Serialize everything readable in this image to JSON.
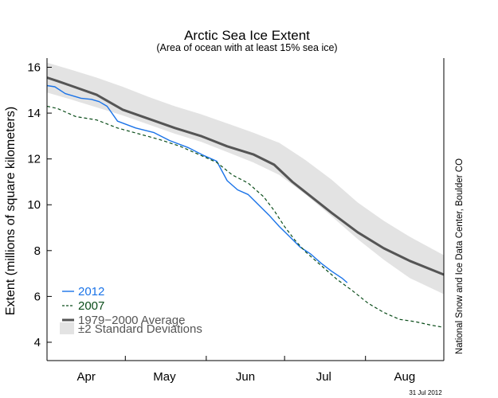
{
  "chart_data": {
    "type": "line",
    "title": "Arctic Sea Ice Extent",
    "subtitle": "(Area of ocean with at least 15% sea ice)",
    "ylabel": "Extent (millions of square kilometers)",
    "xlabel": "",
    "ylim": [
      3.2,
      16.4
    ],
    "yticks": [
      4,
      6,
      8,
      10,
      12,
      14,
      16
    ],
    "xlim": [
      1,
      153
    ],
    "xticks": [
      {
        "label": "Apr",
        "day": 16
      },
      {
        "label": "May",
        "day": 46
      },
      {
        "label": "Jun",
        "day": 77
      },
      {
        "label": "Jul",
        "day": 107
      },
      {
        "label": "Aug",
        "day": 138
      }
    ],
    "grid": false,
    "legend_position": "bottom-left",
    "band": {
      "name": "±2 Standard Deviations",
      "color": "#e3e3e3",
      "x": [
        1,
        10,
        20,
        30,
        40,
        50,
        60,
        70,
        80,
        90,
        100,
        110,
        120,
        130,
        140,
        153
      ],
      "upper": [
        16.2,
        15.9,
        15.55,
        15.15,
        14.7,
        14.3,
        13.95,
        13.55,
        13.15,
        12.7,
        11.95,
        11.1,
        10.1,
        9.3,
        8.6,
        7.8
      ],
      "lower": [
        14.9,
        14.6,
        14.25,
        13.9,
        13.5,
        13.1,
        12.75,
        12.3,
        11.85,
        11.3,
        10.45,
        9.5,
        8.5,
        7.6,
        6.8,
        6.1
      ]
    },
    "series": [
      {
        "name": "1979−2000 Average",
        "color": "#555555",
        "dash": "",
        "x": [
          1,
          5,
          10,
          20,
          30,
          40,
          50,
          60,
          70,
          80,
          88,
          95,
          100,
          110,
          120,
          130,
          140,
          153
        ],
        "values": [
          15.55,
          15.4,
          15.2,
          14.8,
          14.15,
          13.75,
          13.35,
          13.0,
          12.55,
          12.2,
          11.75,
          11.0,
          10.55,
          9.65,
          8.8,
          8.1,
          7.55,
          6.95
        ]
      },
      {
        "name": "2012",
        "color": "#1a73e8",
        "dash": "",
        "x": [
          1,
          4,
          8,
          14,
          18,
          21,
          24,
          28,
          35,
          42,
          48,
          55,
          61,
          66,
          70,
          74,
          78,
          82,
          86,
          90,
          94,
          98,
          102,
          106,
          110,
          114,
          116
        ],
        "values": [
          15.2,
          15.15,
          14.85,
          14.65,
          14.6,
          14.5,
          14.3,
          13.65,
          13.35,
          13.15,
          12.8,
          12.5,
          12.15,
          11.9,
          11.05,
          10.65,
          10.45,
          10.0,
          9.55,
          9.05,
          8.6,
          8.15,
          7.85,
          7.45,
          7.1,
          6.8,
          6.6
        ]
      },
      {
        "name": "2007",
        "color": "#0b4d1a",
        "dash": "4,3",
        "x": [
          1,
          5,
          12,
          20,
          28,
          36,
          44,
          52,
          60,
          66,
          72,
          78,
          84,
          88,
          92,
          96,
          100,
          106,
          112,
          118,
          124,
          130,
          136,
          142,
          148,
          153
        ],
        "values": [
          14.3,
          14.2,
          13.85,
          13.7,
          13.35,
          13.1,
          12.85,
          12.55,
          12.15,
          11.85,
          11.3,
          10.95,
          10.35,
          9.75,
          9.05,
          8.45,
          7.95,
          7.35,
          6.75,
          6.25,
          5.7,
          5.3,
          5.0,
          4.9,
          4.75,
          4.65
        ]
      }
    ],
    "credit": "National Snow and Ice Data Center, Boulder CO",
    "date": "31 Jul 2012"
  }
}
